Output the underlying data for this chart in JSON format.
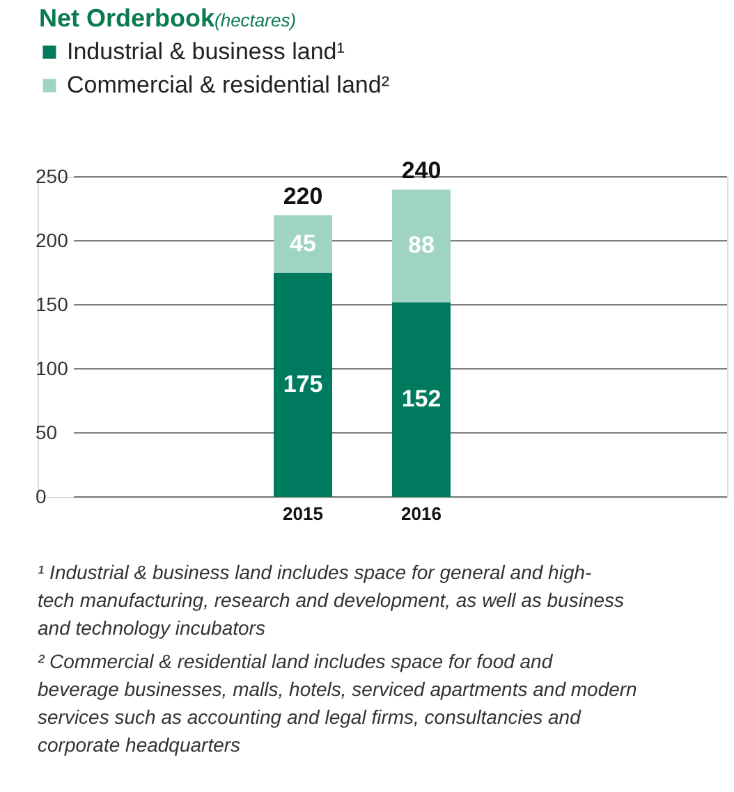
{
  "chart_data": {
    "type": "bar",
    "title": "Net Orderbook",
    "subtitle": "(hectares)",
    "categories": [
      "2015",
      "2016"
    ],
    "series": [
      {
        "name": "Industrial & business land¹",
        "color": "#007a5e",
        "values": [
          175,
          152
        ]
      },
      {
        "name": "Commercial & residential land²",
        "color": "#9fd4c2",
        "values": [
          45,
          88
        ]
      }
    ],
    "stacked": true,
    "data_labels": true,
    "totals": [
      "220",
      "240"
    ],
    "ylim": [
      0,
      250
    ],
    "yticks": [
      0,
      50,
      100,
      150,
      200,
      250
    ],
    "grid": "y",
    "legend": "top left",
    "annotations": [
      "¹ Industrial & business land includes space for general and high-tech manufacturing, research and development, as well as business and technology incubators",
      "² Commercial & residential land includes space for food and beverage businesses, malls, hotels, serviced apartments and modern services such as accounting and legal firms, consultancies and corporate headquarters"
    ]
  }
}
